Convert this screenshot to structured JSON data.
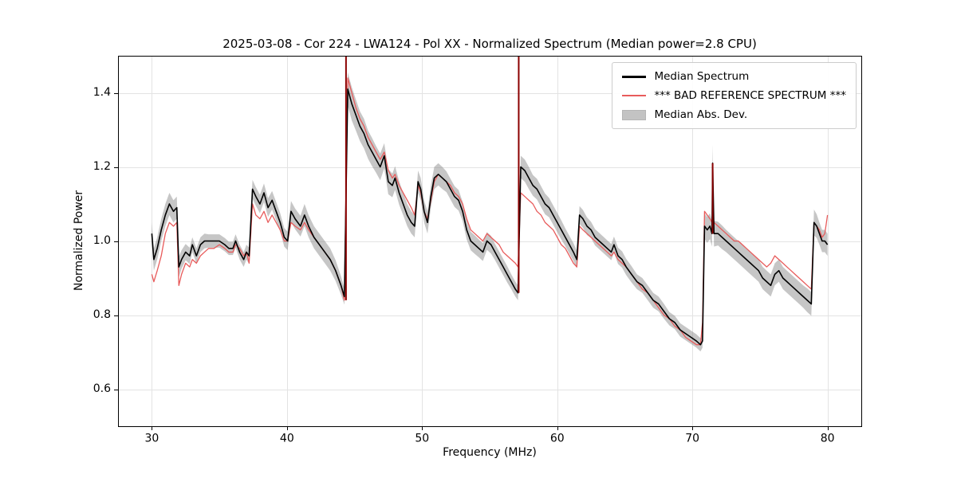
{
  "chart_data": {
    "type": "line",
    "title": "2025-03-08 - Cor 224 - LWA124 - Pol XX - Normalized Spectrum (Median power=2.8 CPU)",
    "xlabel": "Frequency (MHz)",
    "ylabel": "Normalized Power",
    "xlim": [
      27.5,
      82.5
    ],
    "ylim": [
      0.5,
      1.5
    ],
    "xticks": [
      30,
      40,
      50,
      60,
      70,
      80
    ],
    "yticks": [
      0.6,
      0.8,
      1.0,
      1.2,
      1.4
    ],
    "grid": true,
    "legend_location": "upper right",
    "x": [
      30.0,
      30.15,
      30.4,
      30.7,
      31.0,
      31.3,
      31.6,
      31.85,
      32.0,
      32.2,
      32.5,
      32.8,
      33.0,
      33.3,
      33.6,
      33.9,
      34.2,
      34.6,
      35.0,
      35.4,
      35.7,
      36.0,
      36.2,
      36.5,
      36.8,
      37.0,
      37.2,
      37.45,
      37.7,
      38.0,
      38.3,
      38.6,
      38.9,
      39.2,
      39.5,
      39.8,
      40.05,
      40.3,
      40.6,
      41.0,
      41.3,
      41.6,
      42.0,
      42.4,
      42.8,
      43.2,
      43.6,
      44.0,
      44.25,
      44.5,
      44.8,
      45.1,
      45.4,
      45.7,
      46.0,
      46.3,
      46.6,
      46.9,
      47.2,
      47.5,
      47.8,
      48.0,
      48.3,
      48.6,
      48.9,
      49.2,
      49.45,
      49.7,
      49.9,
      50.15,
      50.4,
      50.65,
      50.9,
      51.2,
      51.5,
      51.8,
      52.1,
      52.4,
      52.7,
      53.0,
      53.3,
      53.6,
      53.9,
      54.2,
      54.5,
      54.8,
      55.1,
      55.4,
      55.7,
      56.0,
      56.3,
      56.6,
      56.9,
      57.1,
      57.3,
      57.6,
      57.9,
      58.2,
      58.5,
      58.8,
      59.1,
      59.4,
      59.7,
      60.0,
      60.3,
      60.6,
      60.9,
      61.2,
      61.45,
      61.65,
      61.9,
      62.2,
      62.5,
      62.8,
      63.1,
      63.4,
      63.7,
      64.0,
      64.2,
      64.5,
      64.8,
      65.1,
      65.5,
      65.9,
      66.3,
      66.7,
      67.1,
      67.5,
      67.9,
      68.3,
      68.7,
      69.1,
      69.5,
      69.9,
      70.3,
      70.6,
      70.75,
      70.9,
      71.1,
      71.3,
      71.45,
      71.5,
      71.6,
      71.9,
      72.2,
      72.5,
      72.8,
      73.1,
      73.4,
      73.7,
      74.0,
      74.3,
      74.6,
      74.9,
      75.2,
      75.5,
      75.8,
      76.1,
      76.4,
      76.7,
      77.0,
      77.3,
      77.6,
      77.9,
      78.2,
      78.5,
      78.8,
      79.0,
      79.2,
      79.4,
      79.6,
      79.8,
      80.0
    ],
    "series": {
      "median": {
        "label": "Median Spectrum",
        "color": "#000000",
        "values": [
          1.02,
          0.95,
          0.98,
          1.03,
          1.07,
          1.1,
          1.08,
          1.09,
          0.93,
          0.95,
          0.97,
          0.96,
          0.99,
          0.96,
          0.99,
          1.0,
          1.0,
          1.0,
          1.0,
          0.99,
          0.98,
          0.98,
          1.0,
          0.97,
          0.95,
          0.97,
          0.96,
          1.14,
          1.12,
          1.1,
          1.13,
          1.09,
          1.11,
          1.08,
          1.05,
          1.01,
          1.0,
          1.08,
          1.06,
          1.04,
          1.07,
          1.04,
          1.01,
          0.99,
          0.97,
          0.95,
          0.92,
          0.88,
          0.85,
          1.41,
          1.37,
          1.34,
          1.31,
          1.29,
          1.26,
          1.24,
          1.22,
          1.2,
          1.23,
          1.16,
          1.15,
          1.17,
          1.13,
          1.1,
          1.07,
          1.05,
          1.04,
          1.16,
          1.14,
          1.08,
          1.05,
          1.12,
          1.17,
          1.18,
          1.17,
          1.16,
          1.14,
          1.12,
          1.11,
          1.08,
          1.03,
          1.0,
          0.99,
          0.98,
          0.97,
          1.0,
          0.99,
          0.97,
          0.95,
          0.93,
          0.91,
          0.89,
          0.87,
          0.86,
          1.2,
          1.19,
          1.17,
          1.15,
          1.14,
          1.12,
          1.1,
          1.09,
          1.07,
          1.05,
          1.03,
          1.01,
          0.99,
          0.97,
          0.95,
          1.07,
          1.06,
          1.04,
          1.03,
          1.01,
          1.0,
          0.99,
          0.98,
          0.97,
          0.99,
          0.96,
          0.95,
          0.93,
          0.91,
          0.89,
          0.88,
          0.86,
          0.84,
          0.83,
          0.81,
          0.79,
          0.78,
          0.76,
          0.75,
          0.74,
          0.73,
          0.72,
          0.73,
          1.04,
          1.03,
          1.04,
          1.02,
          1.21,
          1.02,
          1.02,
          1.01,
          1.0,
          0.99,
          0.98,
          0.97,
          0.96,
          0.95,
          0.94,
          0.93,
          0.92,
          0.9,
          0.89,
          0.88,
          0.91,
          0.92,
          0.9,
          0.89,
          0.88,
          0.87,
          0.86,
          0.85,
          0.84,
          0.83,
          1.05,
          1.04,
          1.02,
          1.0,
          1.0,
          0.99
        ]
      },
      "reference": {
        "label": "*** BAD REFERENCE SPECTRUM ***",
        "color": "#e85b5b",
        "values": [
          0.91,
          0.89,
          0.92,
          0.96,
          1.02,
          1.05,
          1.04,
          1.05,
          0.88,
          0.91,
          0.94,
          0.93,
          0.95,
          0.94,
          0.96,
          0.97,
          0.98,
          0.98,
          0.99,
          0.98,
          0.97,
          0.97,
          0.99,
          0.98,
          0.96,
          0.97,
          0.94,
          1.1,
          1.07,
          1.06,
          1.08,
          1.05,
          1.07,
          1.05,
          1.03,
          1.0,
          1.0,
          1.05,
          1.04,
          1.03,
          1.05,
          1.03,
          1.01,
          0.99,
          0.97,
          0.95,
          0.92,
          0.88,
          0.84,
          1.44,
          1.4,
          1.36,
          1.33,
          1.31,
          1.28,
          1.26,
          1.24,
          1.22,
          1.24,
          1.19,
          1.17,
          1.18,
          1.15,
          1.13,
          1.11,
          1.09,
          1.07,
          1.15,
          1.13,
          1.08,
          1.06,
          1.11,
          1.16,
          1.18,
          1.17,
          1.16,
          1.15,
          1.13,
          1.12,
          1.1,
          1.06,
          1.03,
          1.02,
          1.01,
          1.0,
          1.02,
          1.01,
          1.0,
          0.99,
          0.97,
          0.96,
          0.95,
          0.94,
          0.93,
          1.13,
          1.12,
          1.11,
          1.1,
          1.08,
          1.07,
          1.05,
          1.04,
          1.03,
          1.01,
          0.99,
          0.98,
          0.96,
          0.94,
          0.93,
          1.04,
          1.03,
          1.02,
          1.01,
          1.0,
          0.99,
          0.98,
          0.97,
          0.96,
          0.97,
          0.95,
          0.94,
          0.93,
          0.91,
          0.89,
          0.87,
          0.86,
          0.84,
          0.82,
          0.8,
          0.79,
          0.77,
          0.76,
          0.74,
          0.73,
          0.72,
          0.72,
          0.78,
          1.08,
          1.07,
          1.06,
          1.05,
          1.06,
          1.05,
          1.04,
          1.03,
          1.02,
          1.01,
          1.0,
          1.0,
          0.99,
          0.98,
          0.97,
          0.96,
          0.95,
          0.94,
          0.93,
          0.94,
          0.96,
          0.95,
          0.94,
          0.93,
          0.92,
          0.91,
          0.9,
          0.89,
          0.88,
          0.87,
          1.05,
          1.04,
          1.03,
          1.01,
          1.02,
          1.07
        ]
      },
      "mad_halfwidth": {
        "label": "Median Abs. Dev.",
        "color": "#c3c3c3",
        "values": [
          0.03,
          0.03,
          0.03,
          0.03,
          0.03,
          0.03,
          0.03,
          0.03,
          0.028,
          0.025,
          0.022,
          0.022,
          0.02,
          0.02,
          0.02,
          0.02,
          0.018,
          0.018,
          0.018,
          0.018,
          0.018,
          0.018,
          0.018,
          0.02,
          0.02,
          0.02,
          0.022,
          0.025,
          0.025,
          0.025,
          0.025,
          0.025,
          0.025,
          0.025,
          0.025,
          0.025,
          0.025,
          0.028,
          0.028,
          0.028,
          0.03,
          0.03,
          0.03,
          0.03,
          0.03,
          0.03,
          0.028,
          0.025,
          0.022,
          0.045,
          0.045,
          0.042,
          0.04,
          0.04,
          0.038,
          0.038,
          0.036,
          0.036,
          0.034,
          0.034,
          0.032,
          0.032,
          0.032,
          0.03,
          0.03,
          0.03,
          0.03,
          0.03,
          0.03,
          0.03,
          0.03,
          0.03,
          0.03,
          0.03,
          0.03,
          0.028,
          0.028,
          0.028,
          0.028,
          0.026,
          0.026,
          0.025,
          0.025,
          0.024,
          0.024,
          0.024,
          0.024,
          0.022,
          0.022,
          0.022,
          0.022,
          0.02,
          0.02,
          0.02,
          0.03,
          0.03,
          0.03,
          0.028,
          0.028,
          0.028,
          0.028,
          0.026,
          0.026,
          0.026,
          0.026,
          0.024,
          0.024,
          0.024,
          0.024,
          0.024,
          0.024,
          0.024,
          0.022,
          0.022,
          0.022,
          0.022,
          0.022,
          0.022,
          0.022,
          0.022,
          0.022,
          0.022,
          0.022,
          0.02,
          0.02,
          0.02,
          0.02,
          0.02,
          0.02,
          0.018,
          0.018,
          0.018,
          0.018,
          0.018,
          0.018,
          0.018,
          0.018,
          0.035,
          0.035,
          0.035,
          0.035,
          0.05,
          0.035,
          0.032,
          0.032,
          0.03,
          0.03,
          0.03,
          0.03,
          0.03,
          0.03,
          0.03,
          0.03,
          0.03,
          0.03,
          0.03,
          0.03,
          0.03,
          0.03,
          0.03,
          0.03,
          0.03,
          0.03,
          0.03,
          0.03,
          0.032,
          0.032,
          0.035,
          0.032,
          0.03,
          0.03,
          0.03,
          0.03
        ]
      }
    },
    "rfi_spikes": [
      {
        "x": 44.37,
        "y0": 0.84,
        "y1": 1.5
      },
      {
        "x": 57.15,
        "y0": 0.86,
        "y1": 1.5
      },
      {
        "x": 71.5,
        "y0": 1.02,
        "y1": 1.21
      }
    ],
    "style": {
      "grid_color": "#e3e3e3",
      "axis_color": "#000000",
      "spike_color": "#8b0000",
      "band_fill": "rgba(128,128,128,0.45)"
    }
  }
}
